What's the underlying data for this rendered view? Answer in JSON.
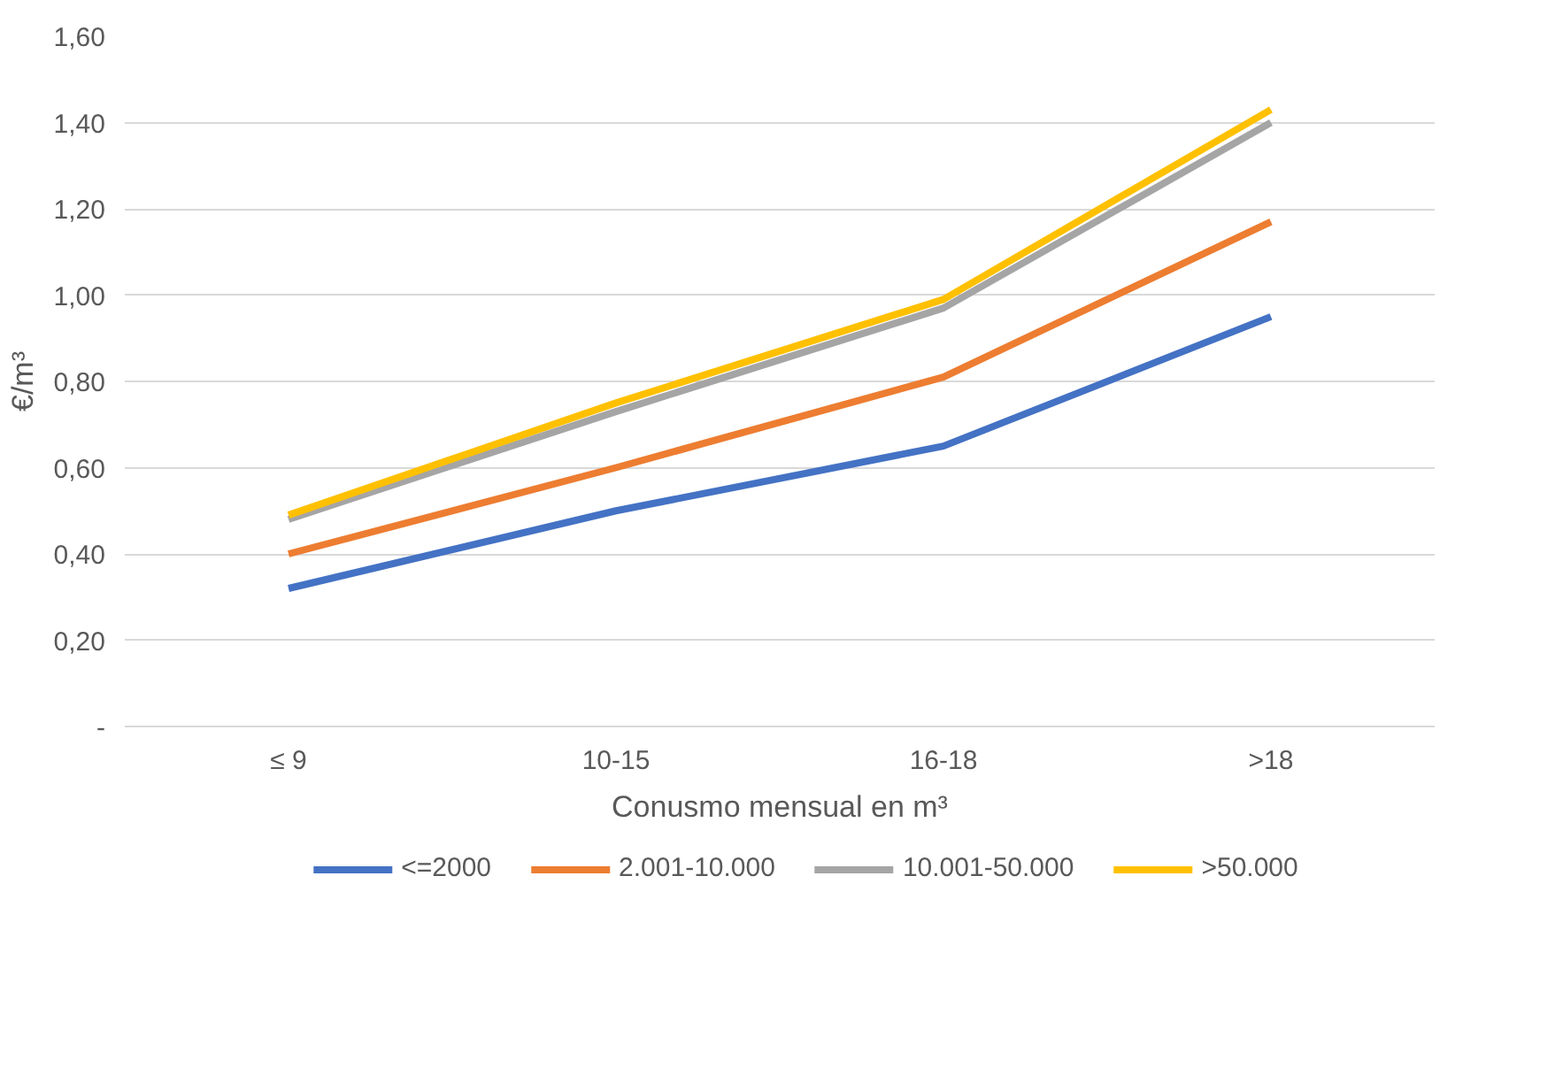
{
  "chart_data": {
    "type": "line",
    "xlabel": "Conusmo mensual en m³",
    "ylabel": "€/m³",
    "categories": [
      "≤ 9",
      "10-15",
      "16-18",
      ">18"
    ],
    "series": [
      {
        "name": "<=2000",
        "color": "#4472c4",
        "values": [
          0.32,
          0.5,
          0.65,
          0.95
        ]
      },
      {
        "name": "2.001-10.000",
        "color": "#ed7d31",
        "values": [
          0.4,
          0.6,
          0.81,
          1.17
        ]
      },
      {
        "name": "10.001-50.000",
        "color": "#a5a5a5",
        "values": [
          0.48,
          0.73,
          0.97,
          1.4
        ]
      },
      {
        "name": ">50.000",
        "color": "#ffc000",
        "values": [
          0.49,
          0.75,
          0.99,
          1.43
        ]
      }
    ],
    "ylim": [
      0,
      1.6
    ],
    "yticks": [
      {
        "value": 0,
        "label": "-"
      },
      {
        "value": 0.2,
        "label": "0,20"
      },
      {
        "value": 0.4,
        "label": "0,40"
      },
      {
        "value": 0.6,
        "label": "0,60"
      },
      {
        "value": 0.8,
        "label": "0,80"
      },
      {
        "value": 1.0,
        "label": "1,00"
      },
      {
        "value": 1.2,
        "label": "1,20"
      },
      {
        "value": 1.4,
        "label": "1,40"
      },
      {
        "value": 1.6,
        "label": "1,60"
      }
    ],
    "grid": "y",
    "legend": "bottom",
    "marker": "none",
    "line_style": "solid"
  }
}
